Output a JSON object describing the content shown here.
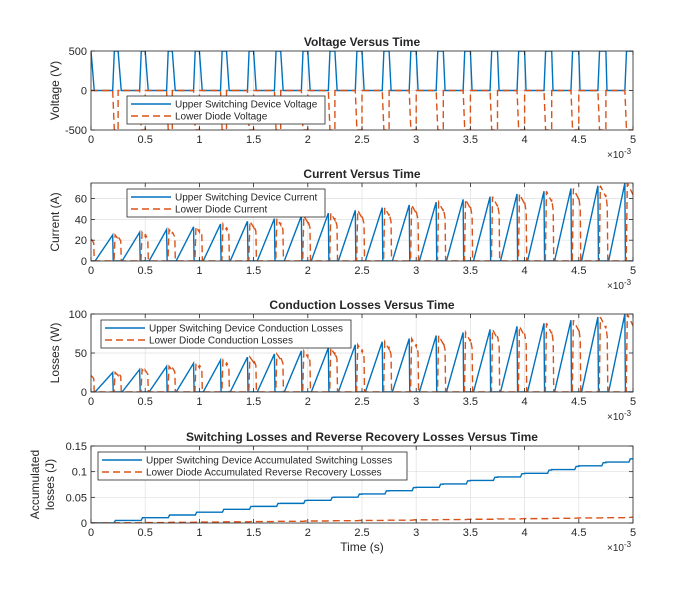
{
  "colors": {
    "series1": "#0072BD",
    "series2": "#D95319",
    "axis": "#262626",
    "grid": "#dfdfdf"
  },
  "chart_data": [
    {
      "type": "line",
      "title": "Voltage Versus Time",
      "xlabel": "",
      "ylabel": "Voltage (V)",
      "xlim": [
        0,
        0.005
      ],
      "ylim": [
        -500,
        500
      ],
      "yticks": [
        -500,
        0,
        500
      ],
      "xticks": [
        0,
        0.0005,
        0.001,
        0.0015,
        0.002,
        0.0025,
        0.003,
        0.0035,
        0.004,
        0.0045,
        0.005
      ],
      "xtick_labels": [
        "0",
        "0.5",
        "1",
        "1.5",
        "2",
        "2.5",
        "3",
        "3.5",
        "4",
        "4.5",
        "5"
      ],
      "x_exponent": "×10",
      "x_exponent_power": "-3",
      "grid": true,
      "legend_position": "top-left",
      "period": 0.00025,
      "cycles": 20,
      "series": [
        {
          "name": "Upper Switching Device Voltage",
          "waveform": "switch-voltage",
          "high": 500,
          "low": 0,
          "duty_start": [
            0.75,
            0.05
          ]
        },
        {
          "name": "Lower Diode Voltage",
          "waveform": "diode-voltage",
          "high": 0,
          "low": -500,
          "duty_start": [
            0.75,
            0.05
          ]
        }
      ]
    },
    {
      "type": "line",
      "title": "Current Versus Time",
      "xlabel": "",
      "ylabel": "Current (A)",
      "xlim": [
        0,
        0.005
      ],
      "ylim": [
        0,
        75
      ],
      "yticks": [
        0,
        20,
        40,
        60
      ],
      "xticks": [
        0,
        0.0005,
        0.001,
        0.0015,
        0.002,
        0.0025,
        0.003,
        0.0035,
        0.004,
        0.0045,
        0.005
      ],
      "xtick_labels": [
        "0",
        "0.5",
        "1",
        "1.5",
        "2",
        "2.5",
        "3",
        "3.5",
        "4",
        "4.5",
        "5"
      ],
      "x_exponent": "×10",
      "x_exponent_power": "-3",
      "grid": true,
      "legend_position": "top-left",
      "period": 0.00025,
      "cycles": 20,
      "series": [
        {
          "name": "Upper Switching Device Current",
          "waveform": "switch-current",
          "peak_start": 25,
          "peak_end": 75
        },
        {
          "name": "Lower Diode Current",
          "waveform": "diode-current",
          "peak_start": 25,
          "peak_end": 75
        }
      ]
    },
    {
      "type": "line",
      "title": "Conduction Losses Versus Time",
      "xlabel": "",
      "ylabel": "Losses (W)",
      "xlim": [
        0,
        0.005
      ],
      "ylim": [
        0,
        100
      ],
      "yticks": [
        0,
        50,
        100
      ],
      "xticks": [
        0,
        0.0005,
        0.001,
        0.0015,
        0.002,
        0.0025,
        0.003,
        0.0035,
        0.004,
        0.0045,
        0.005
      ],
      "xtick_labels": [
        "0",
        "0.5",
        "1",
        "1.5",
        "2",
        "2.5",
        "3",
        "3.5",
        "4",
        "4.5",
        "5"
      ],
      "x_exponent": "×10",
      "x_exponent_power": "-3",
      "grid": true,
      "legend_position": "top-left",
      "period": 0.00025,
      "cycles": 20,
      "series": [
        {
          "name": "Upper Switching Device Conduction Losses",
          "waveform": "switch-current",
          "peak_start": 25,
          "peak_end": 100
        },
        {
          "name": "Lower Diode Conduction Losses",
          "waveform": "diode-current",
          "peak_start": 25,
          "peak_end": 100
        }
      ]
    },
    {
      "type": "line",
      "title": "Switching Losses and Reverse Recovery Losses Versus Time",
      "xlabel": "Time (s)",
      "ylabel": [
        "Accumulated",
        "losses (J)"
      ],
      "xlim": [
        0,
        0.005
      ],
      "ylim": [
        0,
        0.15
      ],
      "yticks": [
        0,
        0.05,
        0.1,
        0.15
      ],
      "ytick_labels": [
        "0",
        "0.05",
        "0.1",
        "0.15"
      ],
      "xticks": [
        0,
        0.0005,
        0.001,
        0.0015,
        0.002,
        0.0025,
        0.003,
        0.0035,
        0.004,
        0.0045,
        0.005
      ],
      "xtick_labels": [
        "0",
        "0.5",
        "1",
        "1.5",
        "2",
        "2.5",
        "3",
        "3.5",
        "4",
        "4.5",
        "5"
      ],
      "x_exponent": "×10",
      "x_exponent_power": "-3",
      "grid": true,
      "legend_position": "top-left",
      "period": 0.00025,
      "cycles": 20,
      "series": [
        {
          "name": "Upper Switching Device Accumulated Switching Losses",
          "waveform": "staircase",
          "end_value": 0.125
        },
        {
          "name": "Lower Diode Accumulated Reverse Recovery Losses",
          "waveform": "staircase",
          "end_value": 0.011
        }
      ]
    }
  ]
}
